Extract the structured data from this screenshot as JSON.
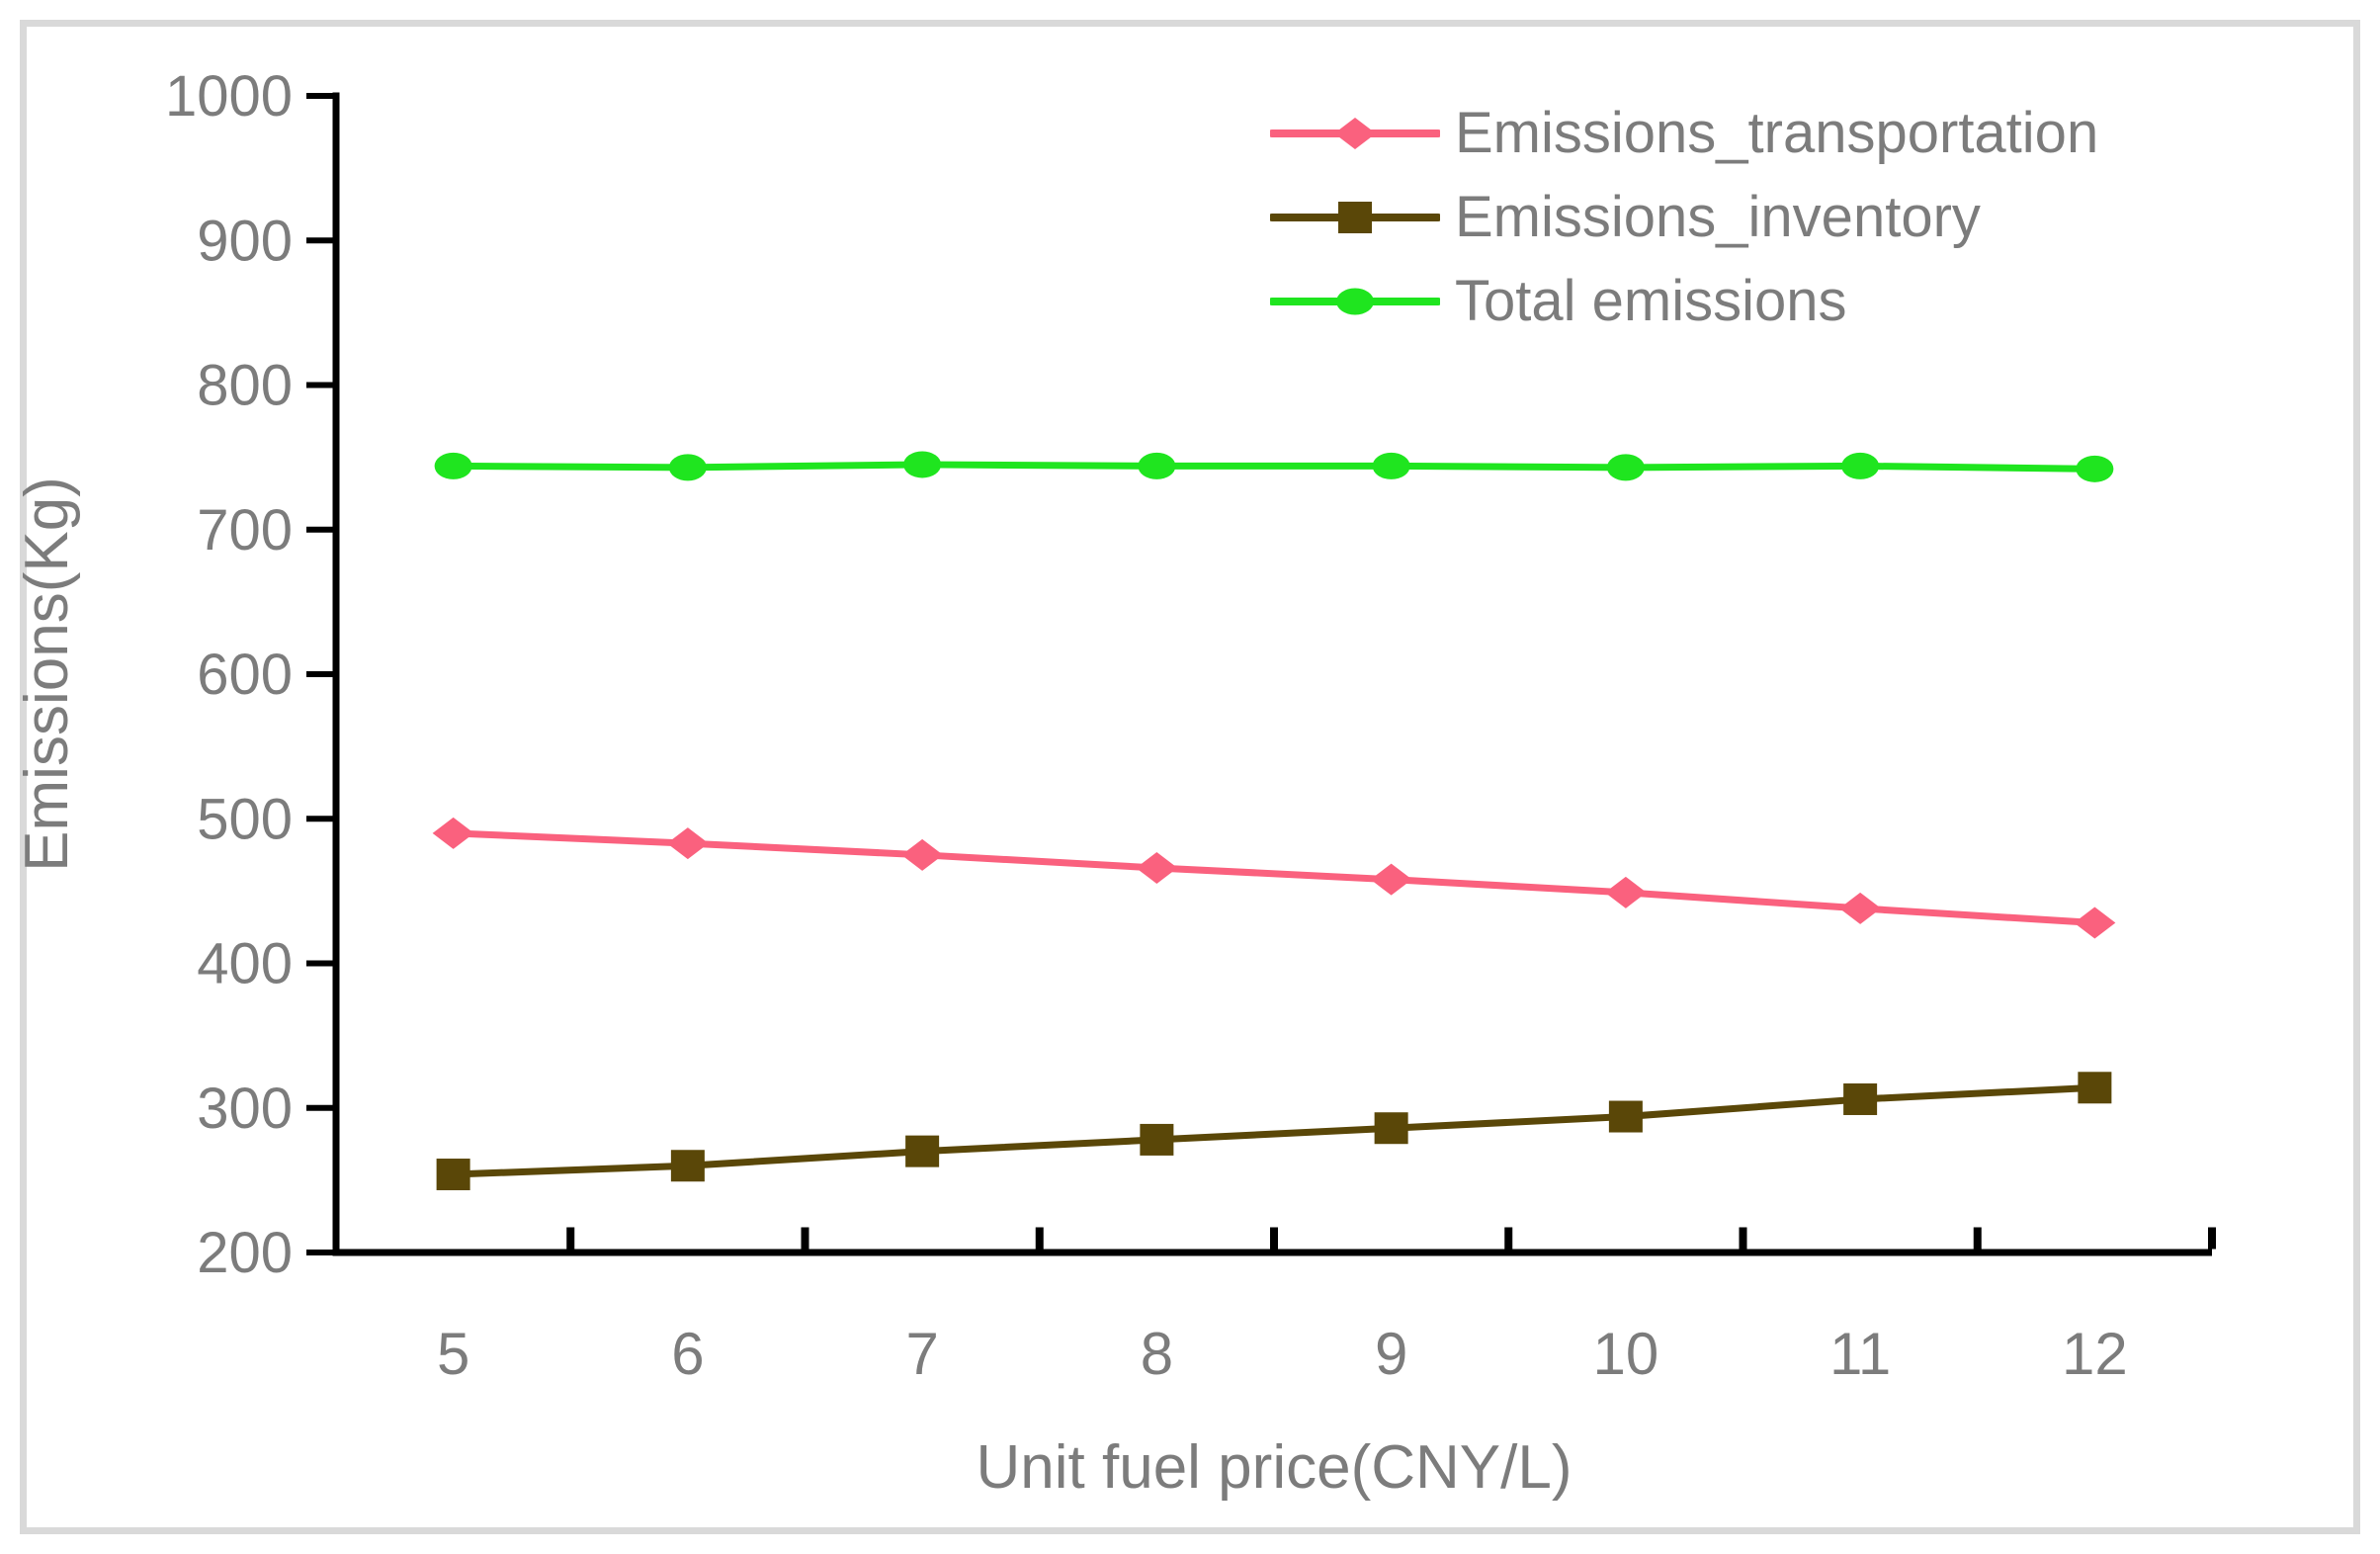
{
  "figure": {
    "background": "#FFFFFF",
    "border_color": "#D9D9D9",
    "text_color": "#7C7C7C",
    "axis_color": "#000000"
  },
  "chart_data": {
    "type": "line",
    "title": "",
    "xlabel": "Unit fuel price(CNY/L)",
    "ylabel": "Emissions(Kg)",
    "x": [
      5,
      6,
      7,
      8,
      9,
      10,
      11,
      12
    ],
    "ylim": [
      200,
      1000
    ],
    "ytick_step": 100,
    "yticks": [
      200,
      300,
      400,
      500,
      600,
      700,
      800,
      900,
      1000
    ],
    "grid": false,
    "legend_position": "top-right",
    "series": [
      {
        "name": "Emissions_transportation",
        "color": "#FA617E",
        "marker": "diamond",
        "values": [
          490,
          483,
          475,
          466,
          458,
          449,
          438,
          428
        ]
      },
      {
        "name": "Emissions_inventory",
        "color": "#5A4708",
        "marker": "square",
        "values": [
          254,
          260,
          270,
          278,
          286,
          294,
          306,
          314
        ]
      },
      {
        "name": "Total emissions",
        "color": "#1FE51F",
        "marker": "circle",
        "values": [
          744,
          743,
          745,
          744,
          744,
          743,
          744,
          742
        ]
      }
    ]
  }
}
